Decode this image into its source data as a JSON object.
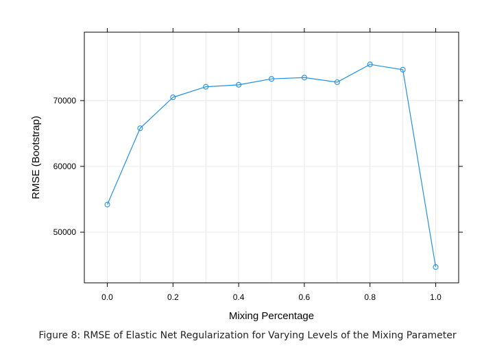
{
  "chart_data": {
    "type": "line",
    "x": [
      0.0,
      0.1,
      0.2,
      0.3,
      0.4,
      0.5,
      0.6,
      0.7,
      0.8,
      0.9,
      1.0
    ],
    "series": [
      {
        "values": [
          54200,
          65800,
          70500,
          72100,
          72400,
          73300,
          73500,
          72800,
          75500,
          74700,
          44700
        ]
      }
    ],
    "xlabel": "Mixing Percentage",
    "ylabel": "RMSE (Bootstrap)",
    "xticks": [
      "0.0",
      "0.2",
      "0.4",
      "0.6",
      "0.8",
      "1.0"
    ],
    "xtick_values": [
      0.0,
      0.2,
      0.4,
      0.6,
      0.8,
      1.0
    ],
    "yticks": [
      "50000",
      "60000",
      "70000"
    ],
    "ytick_values": [
      50000,
      60000,
      70000
    ],
    "xlim": [
      -0.07,
      1.07
    ],
    "ylim": [
      42300,
      80400
    ],
    "grid": true,
    "line_color": "#1f8fe5",
    "grid_color": "#e8e8e8"
  },
  "caption": "Figure 8: RMSE of Elastic Net Regularization for Varying Levels of the Mixing Parameter"
}
